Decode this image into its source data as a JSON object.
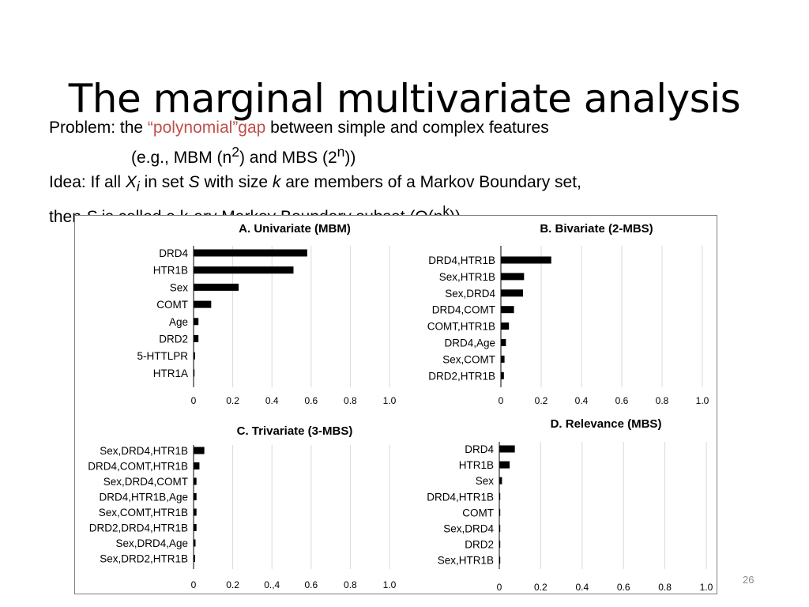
{
  "slide": {
    "title": "The marginal multivariate analysis",
    "page_number": "26"
  },
  "text": {
    "l1_prefix": "Problem: the ",
    "l1_red": "“polynomial”gap",
    "l1_suffix": " between simple and complex features",
    "l2_a": "(e.g., MBM (n",
    "l2_sup1": "2",
    "l2_b": ") and MBS (2",
    "l2_sup2": "n",
    "l2_c": "))",
    "l3_a": "Idea: If all ",
    "l3_X": "X",
    "l3_sub": "i",
    "l3_b": " in set ",
    "l3_S": "S",
    "l3_c": " with size ",
    "l3_k": "k",
    "l3_d": " are members of a Markov Boundary set,",
    "l4_a": "then ",
    "l4_S": "S",
    "l4_b": " is called a k-ary Markov Boundary subset (O(n",
    "l4_sup": "k",
    "l4_c": "))."
  },
  "chart_data": [
    {
      "type": "bar",
      "orientation": "horizontal",
      "title": "A. Univariate (MBM)",
      "categories": [
        "DRD4",
        "HTR1B",
        "Sex",
        "COMT",
        "Age",
        "DRD2",
        "5-HTTLPR",
        "HTR1A"
      ],
      "values": [
        0.58,
        0.51,
        0.23,
        0.09,
        0.025,
        0.025,
        0.008,
        0.004
      ],
      "xlim": [
        0,
        1.0
      ],
      "ticks": [
        "0",
        "0.2",
        "0.4",
        "0.6",
        "0.8",
        "1.0"
      ],
      "grid": true,
      "color": "#000000"
    },
    {
      "type": "bar",
      "orientation": "horizontal",
      "title": "B. Bivariate (2-MBS)",
      "categories": [
        "DRD4,HTR1B",
        "Sex,HTR1B",
        "Sex,DRD4",
        "DRD4,COMT",
        "COMT,HTR1B",
        "DRD4,Age",
        "Sex,COMT",
        "DRD2,HTR1B"
      ],
      "values": [
        0.25,
        0.115,
        0.11,
        0.065,
        0.04,
        0.025,
        0.018,
        0.015
      ],
      "xlim": [
        0,
        1.0
      ],
      "ticks": [
        "0",
        "0.2",
        "0.4",
        "0.6",
        "0.8",
        "1.0"
      ],
      "grid": true,
      "color": "#000000"
    },
    {
      "type": "bar",
      "orientation": "horizontal",
      "title": "C. Trivariate (3-MBS)",
      "categories": [
        "Sex,DRD4,HTR1B",
        "DRD4,COMT,HTR1B",
        "Sex,DRD4,COMT",
        "DRD4,HTR1B,Age",
        "Sex,COMT,HTR1B",
        "DRD2,DRD4,HTR1B",
        "Sex,DRD4,Age",
        "Sex,DRD2,HTR1B"
      ],
      "values": [
        0.055,
        0.03,
        0.015,
        0.015,
        0.015,
        0.015,
        0.01,
        0.008
      ],
      "xlim": [
        0,
        1.0
      ],
      "ticks": [
        "0",
        "0.2",
        "0.,4",
        "0.6",
        "0.8",
        "1.0"
      ],
      "grid": true,
      "color": "#000000"
    },
    {
      "type": "bar",
      "orientation": "horizontal",
      "title": "D. Relevance (MBS)",
      "categories": [
        "DRD4",
        "HTR1B",
        "Sex",
        "DRD4,HTR1B",
        "COMT",
        "Sex,DRD4",
        "DRD2",
        "Sex,HTR1B"
      ],
      "values": [
        0.075,
        0.05,
        0.013,
        0.004,
        0.003,
        0.002,
        0.001,
        0.001
      ],
      "xlim": [
        0,
        1.0
      ],
      "ticks": [
        "0",
        "0.2",
        "0.4",
        "0.6",
        "0.8",
        "1.0"
      ],
      "grid": true,
      "color": "#000000"
    }
  ]
}
